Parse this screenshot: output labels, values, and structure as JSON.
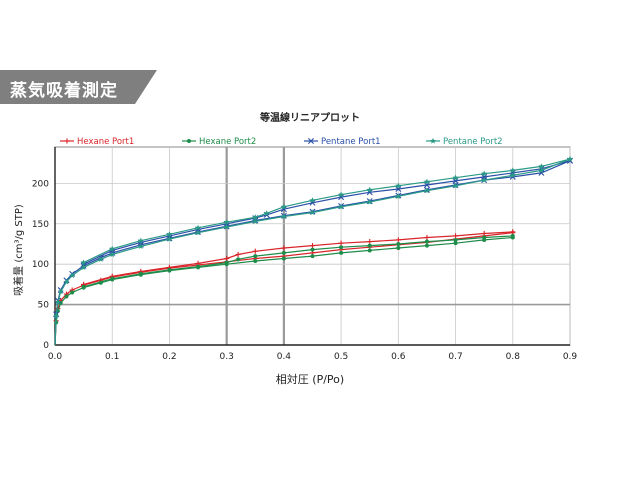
{
  "banner": {
    "title": "蒸気吸着測定"
  },
  "colors": {
    "banner_bg": "#7f7f7f",
    "hexane_port1": "#d9252a",
    "hexane_port2": "#1e8c4a",
    "pentane_port1": "#2b4fa8",
    "pentane_port2": "#2a9a86"
  },
  "chart_data": {
    "type": "line",
    "title": "等温線リニアプロット",
    "xlabel": "相対圧 (P/Po)",
    "ylabel": "吸着量 (cm³/g STP)",
    "xlim": [
      0,
      0.9
    ],
    "ylim": [
      0,
      245
    ],
    "xticks": [
      "0.0",
      "0.1",
      "0.2",
      "0.3",
      "0.4",
      "0.5",
      "0.6",
      "0.7",
      "0.8",
      "0.9"
    ],
    "yticks": [
      "0",
      "50",
      "100",
      "150",
      "200"
    ],
    "grid": true,
    "legend_position": "top",
    "series": [
      {
        "name": "Hexane Port1",
        "marker": "+",
        "color": "#d9252a",
        "adsorption": [
          [
            0.0,
            0
          ],
          [
            0.002,
            30
          ],
          [
            0.005,
            45
          ],
          [
            0.01,
            55
          ],
          [
            0.02,
            63
          ],
          [
            0.03,
            68
          ],
          [
            0.05,
            74
          ],
          [
            0.08,
            80
          ],
          [
            0.1,
            84
          ],
          [
            0.15,
            90
          ],
          [
            0.2,
            95
          ],
          [
            0.25,
            99
          ],
          [
            0.3,
            103
          ],
          [
            0.35,
            107
          ],
          [
            0.4,
            110
          ],
          [
            0.45,
            114
          ],
          [
            0.5,
            118
          ],
          [
            0.55,
            121
          ],
          [
            0.6,
            124
          ],
          [
            0.65,
            127
          ],
          [
            0.7,
            131
          ],
          [
            0.75,
            135
          ],
          [
            0.8,
            139
          ]
        ],
        "desorption": [
          [
            0.8,
            140
          ],
          [
            0.75,
            138
          ],
          [
            0.7,
            135
          ],
          [
            0.65,
            133
          ],
          [
            0.6,
            130
          ],
          [
            0.55,
            128
          ],
          [
            0.5,
            126
          ],
          [
            0.45,
            123
          ],
          [
            0.4,
            120
          ],
          [
            0.35,
            116
          ],
          [
            0.32,
            112
          ],
          [
            0.3,
            107
          ],
          [
            0.25,
            101
          ],
          [
            0.2,
            96
          ],
          [
            0.15,
            91
          ],
          [
            0.1,
            85
          ],
          [
            0.05,
            75
          ]
        ]
      },
      {
        "name": "Hexane Port2",
        "marker": "dot",
        "color": "#1e8c4a",
        "adsorption": [
          [
            0.0,
            0
          ],
          [
            0.002,
            28
          ],
          [
            0.005,
            42
          ],
          [
            0.01,
            52
          ],
          [
            0.02,
            60
          ],
          [
            0.03,
            65
          ],
          [
            0.05,
            71
          ],
          [
            0.08,
            77
          ],
          [
            0.1,
            81
          ],
          [
            0.15,
            87
          ],
          [
            0.2,
            92
          ],
          [
            0.25,
            96
          ],
          [
            0.3,
            100
          ],
          [
            0.35,
            104
          ],
          [
            0.4,
            107
          ],
          [
            0.45,
            110
          ],
          [
            0.5,
            114
          ],
          [
            0.55,
            117
          ],
          [
            0.6,
            120
          ],
          [
            0.65,
            123
          ],
          [
            0.7,
            126
          ],
          [
            0.75,
            130
          ],
          [
            0.8,
            133
          ]
        ],
        "desorption": [
          [
            0.8,
            135
          ],
          [
            0.75,
            133
          ],
          [
            0.7,
            130
          ],
          [
            0.65,
            128
          ],
          [
            0.6,
            125
          ],
          [
            0.55,
            123
          ],
          [
            0.5,
            121
          ],
          [
            0.45,
            118
          ],
          [
            0.4,
            114
          ],
          [
            0.35,
            110
          ],
          [
            0.32,
            106
          ],
          [
            0.3,
            102
          ],
          [
            0.25,
            97
          ],
          [
            0.2,
            93
          ],
          [
            0.15,
            88
          ],
          [
            0.1,
            82
          ],
          [
            0.05,
            72
          ]
        ]
      },
      {
        "name": "Pentane Port1",
        "marker": "x",
        "color": "#2b4fa8",
        "adsorption": [
          [
            0.0,
            0
          ],
          [
            0.002,
            38
          ],
          [
            0.005,
            55
          ],
          [
            0.01,
            68
          ],
          [
            0.02,
            80
          ],
          [
            0.03,
            88
          ],
          [
            0.05,
            98
          ],
          [
            0.08,
            108
          ],
          [
            0.1,
            114
          ],
          [
            0.15,
            124
          ],
          [
            0.2,
            132
          ],
          [
            0.25,
            140
          ],
          [
            0.3,
            147
          ],
          [
            0.35,
            154
          ],
          [
            0.4,
            160
          ],
          [
            0.45,
            165
          ],
          [
            0.5,
            172
          ],
          [
            0.55,
            178
          ],
          [
            0.6,
            185
          ],
          [
            0.65,
            192
          ],
          [
            0.7,
            198
          ],
          [
            0.75,
            204
          ],
          [
            0.8,
            208
          ],
          [
            0.85,
            213
          ],
          [
            0.9,
            228
          ]
        ],
        "desorption": [
          [
            0.9,
            228
          ],
          [
            0.85,
            218
          ],
          [
            0.8,
            213
          ],
          [
            0.75,
            208
          ],
          [
            0.7,
            203
          ],
          [
            0.65,
            198
          ],
          [
            0.6,
            193
          ],
          [
            0.55,
            189
          ],
          [
            0.5,
            183
          ],
          [
            0.45,
            176
          ],
          [
            0.4,
            168
          ],
          [
            0.37,
            161
          ],
          [
            0.35,
            157
          ],
          [
            0.3,
            150
          ],
          [
            0.25,
            143
          ],
          [
            0.2,
            135
          ],
          [
            0.15,
            127
          ],
          [
            0.1,
            117
          ],
          [
            0.05,
            100
          ]
        ]
      },
      {
        "name": "Pentane Port2",
        "marker": "star",
        "color": "#2a9a86",
        "adsorption": [
          [
            0.0,
            0
          ],
          [
            0.002,
            36
          ],
          [
            0.005,
            53
          ],
          [
            0.01,
            66
          ],
          [
            0.02,
            78
          ],
          [
            0.03,
            86
          ],
          [
            0.05,
            96
          ],
          [
            0.08,
            106
          ],
          [
            0.1,
            112
          ],
          [
            0.15,
            122
          ],
          [
            0.2,
            131
          ],
          [
            0.25,
            139
          ],
          [
            0.3,
            146
          ],
          [
            0.35,
            153
          ],
          [
            0.4,
            159
          ],
          [
            0.45,
            164
          ],
          [
            0.5,
            171
          ],
          [
            0.55,
            177
          ],
          [
            0.6,
            184
          ],
          [
            0.65,
            191
          ],
          [
            0.7,
            197
          ],
          [
            0.75,
            204
          ],
          [
            0.8,
            210
          ],
          [
            0.85,
            216
          ],
          [
            0.9,
            230
          ]
        ],
        "desorption": [
          [
            0.9,
            230
          ],
          [
            0.85,
            221
          ],
          [
            0.8,
            216
          ],
          [
            0.75,
            212
          ],
          [
            0.7,
            207
          ],
          [
            0.65,
            202
          ],
          [
            0.6,
            197
          ],
          [
            0.55,
            192
          ],
          [
            0.5,
            186
          ],
          [
            0.45,
            179
          ],
          [
            0.4,
            171
          ],
          [
            0.37,
            163
          ],
          [
            0.35,
            158
          ],
          [
            0.3,
            152
          ],
          [
            0.25,
            145
          ],
          [
            0.2,
            137
          ],
          [
            0.15,
            129
          ],
          [
            0.1,
            119
          ],
          [
            0.05,
            102
          ]
        ]
      }
    ]
  }
}
